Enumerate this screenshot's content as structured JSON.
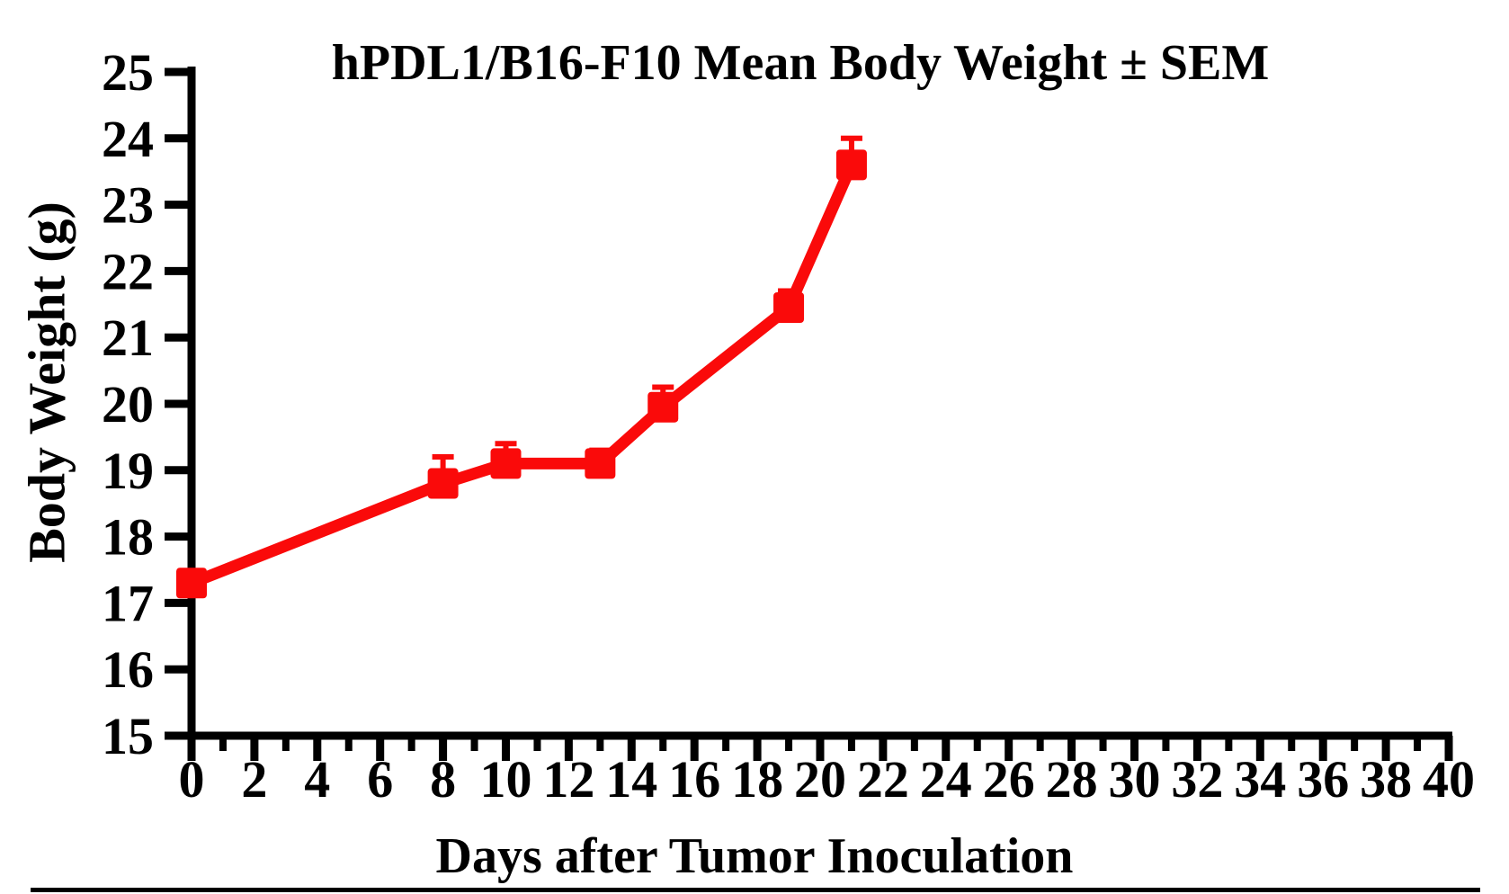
{
  "page": {
    "background": "#ffffff",
    "bottom_rule_color": "#000000"
  },
  "chart_data": {
    "type": "line",
    "title": "hPDL1/B16-F10 Mean Body Weight ± SEM",
    "xlabel": "Days after Tumor Inoculation",
    "ylabel": "Body Weight (g)",
    "xlim": [
      0,
      40
    ],
    "ylim": [
      15,
      25
    ],
    "x_major_tick_step": 2,
    "x_minor_tick_step": 1,
    "y_tick_step": 1,
    "x_tick_labels": [
      "0",
      "2",
      "4",
      "6",
      "8",
      "10",
      "12",
      "14",
      "16",
      "18",
      "20",
      "22",
      "24",
      "26",
      "28",
      "30",
      "32",
      "34",
      "36",
      "38",
      "40"
    ],
    "y_tick_labels": [
      "15",
      "16",
      "17",
      "18",
      "19",
      "20",
      "21",
      "22",
      "23",
      "24",
      "25"
    ],
    "grid": false,
    "legend_position": "none",
    "axis_color": "#000000",
    "series": [
      {
        "name": "hPDL1/B16-F10",
        "color": "#fa0a0a",
        "marker": "square",
        "error_bars": "SEM upward only",
        "points": [
          {
            "day": 0,
            "mean": 17.3,
            "sem": 0.0
          },
          {
            "day": 8,
            "mean": 18.8,
            "sem": 0.4
          },
          {
            "day": 10,
            "mean": 19.1,
            "sem": 0.3
          },
          {
            "day": 13,
            "mean": 19.1,
            "sem": 0.2
          },
          {
            "day": 15,
            "mean": 19.95,
            "sem": 0.3
          },
          {
            "day": 19,
            "mean": 21.45,
            "sem": 0.25
          },
          {
            "day": 21,
            "mean": 23.6,
            "sem": 0.4
          }
        ]
      }
    ]
  }
}
